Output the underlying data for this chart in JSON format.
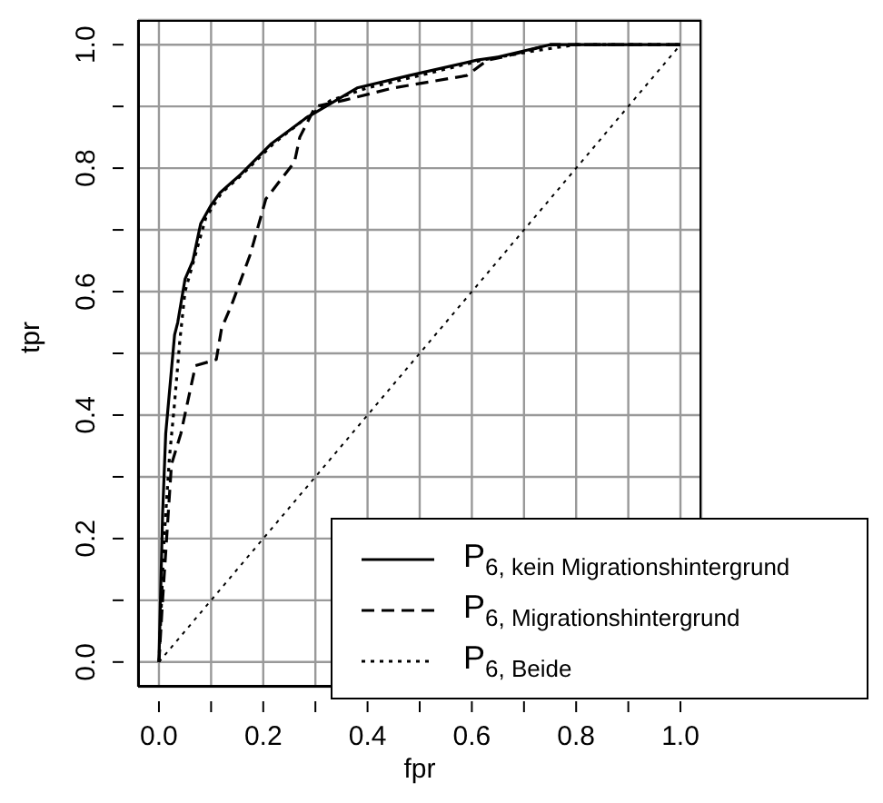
{
  "chart_data": {
    "type": "line",
    "xlabel": "fpr",
    "ylabel": "tpr",
    "xlim": [
      -0.04,
      1.04
    ],
    "ylim": [
      -0.04,
      1.04
    ],
    "xticks": [
      {
        "value": 0,
        "label": "0.0"
      },
      {
        "value": 0.1,
        "label": null
      },
      {
        "value": 0.2,
        "label": "0.2"
      },
      {
        "value": 0.3,
        "label": null
      },
      {
        "value": 0.4,
        "label": "0.4"
      },
      {
        "value": 0.5,
        "label": null
      },
      {
        "value": 0.6,
        "label": "0.6"
      },
      {
        "value": 0.7,
        "label": null
      },
      {
        "value": 0.8,
        "label": "0.8"
      },
      {
        "value": 0.9,
        "label": null
      },
      {
        "value": 1,
        "label": "1.0"
      }
    ],
    "yticks": [
      {
        "value": 0,
        "label": "0.0"
      },
      {
        "value": 0.1,
        "label": null
      },
      {
        "value": 0.2,
        "label": "0.2"
      },
      {
        "value": 0.3,
        "label": null
      },
      {
        "value": 0.4,
        "label": "0.4"
      },
      {
        "value": 0.5,
        "label": null
      },
      {
        "value": 0.6,
        "label": "0.6"
      },
      {
        "value": 0.7,
        "label": null
      },
      {
        "value": 0.8,
        "label": "0.8"
      },
      {
        "value": 0.9,
        "label": null
      },
      {
        "value": 1,
        "label": "1.0"
      }
    ],
    "grid": true,
    "legend": "bottom right",
    "series": [
      {
        "name": "P$_{6, kein Migrationshintergrund}$",
        "color": "#000000",
        "line_style": "solid",
        "x": [
          0,
          0.007,
          0.013,
          0.03,
          0.036,
          0.05,
          0.065,
          0.08,
          0.1,
          0.117,
          0.157,
          0.216,
          0.28,
          0.32,
          0.38,
          0.48,
          0.61,
          0.65,
          0.75,
          1
        ],
        "values": [
          0,
          0.24,
          0.37,
          0.53,
          0.55,
          0.62,
          0.65,
          0.71,
          0.74,
          0.76,
          0.79,
          0.84,
          0.88,
          0.9,
          0.93,
          0.95,
          0.975,
          0.98,
          1,
          1
        ]
      },
      {
        "name": "P$_{6, Migrationshintergrund}$",
        "color": "#000000",
        "line_style": "dashed",
        "x": [
          0,
          0.007,
          0.024,
          0.042,
          0.07,
          0.11,
          0.12,
          0.14,
          0.175,
          0.205,
          0.26,
          0.27,
          0.3,
          0.355,
          0.45,
          0.59,
          0.63,
          0.66,
          0.75,
          1
        ],
        "values": [
          0,
          0.1,
          0.32,
          0.37,
          0.48,
          0.49,
          0.54,
          0.58,
          0.66,
          0.75,
          0.81,
          0.85,
          0.9,
          0.91,
          0.93,
          0.95,
          0.975,
          0.98,
          1,
          1
        ]
      },
      {
        "name": "P$_{6, Beide}$",
        "color": "#000000",
        "line_style": "dotted",
        "x": [
          0,
          0.01,
          0.02,
          0.03,
          0.04,
          0.05,
          0.07,
          0.09,
          0.12,
          0.16,
          0.22,
          0.28,
          0.33,
          0.4,
          0.5,
          0.62,
          0.72,
          0.8,
          1
        ],
        "values": [
          0,
          0.2,
          0.33,
          0.42,
          0.52,
          0.6,
          0.66,
          0.72,
          0.76,
          0.79,
          0.84,
          0.88,
          0.91,
          0.93,
          0.95,
          0.975,
          0.99,
          1,
          1
        ]
      },
      {
        "color": "#000000",
        "line_style": "dotted",
        "x": [
          0,
          1
        ],
        "values": [
          0,
          1
        ]
      }
    ]
  }
}
